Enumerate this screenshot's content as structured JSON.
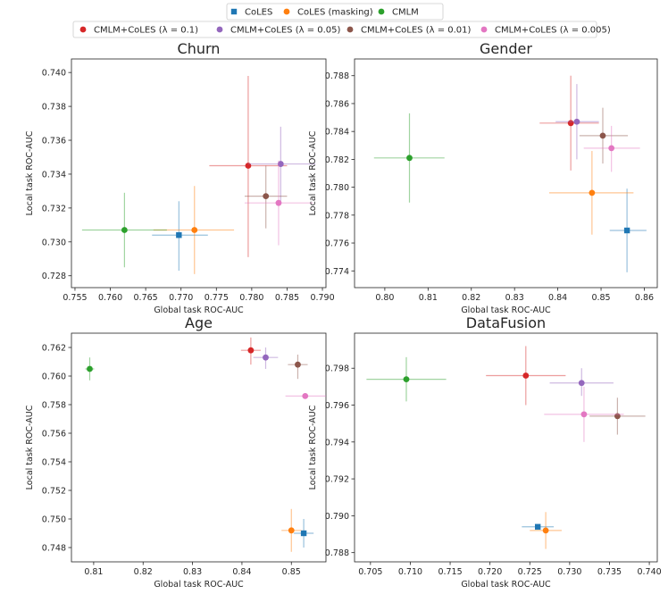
{
  "chart_data": {
    "type": "scatter",
    "legend": {
      "placement": "top-center",
      "entries": [
        {
          "name": "CoLES",
          "color": "#1f77b4",
          "marker": "square"
        },
        {
          "name": "CoLES (masking)",
          "color": "#ff7f0e",
          "marker": "circle"
        },
        {
          "name": "CMLM",
          "color": "#2ca02c",
          "marker": "circle"
        },
        {
          "name": "CMLM+CoLES (λ = 0.1)",
          "color": "#d62728",
          "marker": "circle"
        },
        {
          "name": "CMLM+CoLES (λ = 0.05)",
          "color": "#9467bd",
          "marker": "circle"
        },
        {
          "name": "CMLM+CoLES (λ = 0.01)",
          "color": "#8c564b",
          "marker": "circle"
        },
        {
          "name": "CMLM+CoLES (λ = 0.005)",
          "color": "#e377c2",
          "marker": "circle"
        }
      ]
    },
    "panels": [
      {
        "title": "Churn",
        "xlabel": "Global task ROC-AUC",
        "ylabel": "Local task ROC-AUC",
        "xlim": [
          0.7545,
          0.7905
        ],
        "ylim": [
          0.7273,
          0.7408
        ],
        "xticks": [
          0.755,
          0.76,
          0.765,
          0.77,
          0.775,
          0.78,
          0.785,
          0.79
        ],
        "xtick_labels": [
          "0.755",
          "0.760",
          "0.765",
          "0.770",
          "0.775",
          "0.780",
          "0.785",
          "0.790"
        ],
        "yticks": [
          0.728,
          0.73,
          0.732,
          0.734,
          0.736,
          0.738,
          0.74
        ],
        "ytick_labels": [
          "0.728",
          "0.730",
          "0.732",
          "0.734",
          "0.736",
          "0.738",
          "0.740"
        ],
        "points": [
          {
            "series": "CoLES",
            "x": 0.7697,
            "y": 0.7304,
            "xerr": [
              0.7659,
              0.7738
            ],
            "yerr": [
              0.7283,
              0.7324
            ]
          },
          {
            "series": "CoLES (masking)",
            "x": 0.7719,
            "y": 0.7307,
            "xerr": [
              0.7661,
              0.7775
            ],
            "yerr": [
              0.7281,
              0.7333
            ]
          },
          {
            "series": "CMLM",
            "x": 0.762,
            "y": 0.7307,
            "xerr": [
              0.756,
              0.768
            ],
            "yerr": [
              0.7285,
              0.7329
            ]
          },
          {
            "series": "CMLM+CoLES (λ = 0.1)",
            "x": 0.7795,
            "y": 0.7345,
            "xerr": [
              0.774,
              0.785
            ],
            "yerr": [
              0.7291,
              0.7398
            ]
          },
          {
            "series": "CMLM+CoLES (λ = 0.05)",
            "x": 0.7841,
            "y": 0.7346,
            "xerr": [
              0.7795,
              0.789
            ],
            "yerr": [
              0.7323,
              0.7368
            ]
          },
          {
            "series": "CMLM+CoLES (λ = 0.01)",
            "x": 0.782,
            "y": 0.7327,
            "xerr": [
              0.779,
              0.785
            ],
            "yerr": [
              0.7308,
              0.7345
            ]
          },
          {
            "series": "CMLM+CoLES (λ = 0.005)",
            "x": 0.7838,
            "y": 0.7323,
            "xerr": [
              0.779,
              0.7887
            ],
            "yerr": [
              0.7298,
              0.7348
            ]
          }
        ]
      },
      {
        "title": "Gender",
        "xlabel": "Global task ROC-AUC",
        "ylabel": "Local task ROC-AUC",
        "xlim": [
          0.793,
          0.863
        ],
        "ylim": [
          0.7728,
          0.7892
        ],
        "xticks": [
          0.8,
          0.81,
          0.82,
          0.83,
          0.84,
          0.85,
          0.86
        ],
        "xtick_labels": [
          "0.80",
          "0.81",
          "0.82",
          "0.83",
          "0.84",
          "0.85",
          "0.86"
        ],
        "yticks": [
          0.774,
          0.776,
          0.778,
          0.78,
          0.782,
          0.784,
          0.786,
          0.788
        ],
        "ytick_labels": [
          "0.774",
          "0.776",
          "0.778",
          "0.780",
          "0.782",
          "0.784",
          "0.786",
          "0.788"
        ],
        "points": [
          {
            "series": "CoLES",
            "x": 0.856,
            "y": 0.7769,
            "xerr": [
              0.852,
              0.8605
            ],
            "yerr": [
              0.7739,
              0.7799
            ]
          },
          {
            "series": "CoLES (masking)",
            "x": 0.8479,
            "y": 0.7796,
            "xerr": [
              0.838,
              0.8575
            ],
            "yerr": [
              0.7766,
              0.7826
            ]
          },
          {
            "series": "CMLM",
            "x": 0.8057,
            "y": 0.7821,
            "xerr": [
              0.7975,
              0.8138
            ],
            "yerr": [
              0.7789,
              0.7853
            ]
          },
          {
            "series": "CMLM+CoLES (λ = 0.1)",
            "x": 0.843,
            "y": 0.7846,
            "xerr": [
              0.8358,
              0.8495
            ],
            "yerr": [
              0.7812,
              0.788
            ]
          },
          {
            "series": "CMLM+CoLES (λ = 0.05)",
            "x": 0.8444,
            "y": 0.7847,
            "xerr": [
              0.8395,
              0.8495
            ],
            "yerr": [
              0.782,
              0.7874
            ]
          },
          {
            "series": "CMLM+CoLES (λ = 0.01)",
            "x": 0.8504,
            "y": 0.7837,
            "xerr": [
              0.845,
              0.8562
            ],
            "yerr": [
              0.7817,
              0.7857
            ]
          },
          {
            "series": "CMLM+CoLES (λ = 0.005)",
            "x": 0.8524,
            "y": 0.7828,
            "xerr": [
              0.846,
              0.859
            ],
            "yerr": [
              0.7811,
              0.7844
            ]
          }
        ]
      },
      {
        "title": "Age",
        "xlabel": "Global task ROC-AUC",
        "ylabel": "Local task ROC-AUC",
        "xlim": [
          0.8055,
          0.857
        ],
        "ylim": [
          0.747,
          0.763
        ],
        "xticks": [
          0.81,
          0.82,
          0.83,
          0.84,
          0.85
        ],
        "xtick_labels": [
          "0.81",
          "0.82",
          "0.83",
          "0.84",
          "0.85"
        ],
        "yticks": [
          0.748,
          0.75,
          0.752,
          0.754,
          0.756,
          0.758,
          0.76,
          0.762
        ],
        "ytick_labels": [
          "0.748",
          "0.750",
          "0.752",
          "0.754",
          "0.756",
          "0.758",
          "0.760",
          "0.762"
        ],
        "points": [
          {
            "series": "CoLES",
            "x": 0.8525,
            "y": 0.749,
            "xerr": [
              0.8505,
              0.8545
            ],
            "yerr": [
              0.748,
              0.75
            ]
          },
          {
            "series": "CoLES (masking)",
            "x": 0.85,
            "y": 0.7492,
            "xerr": [
              0.848,
              0.852
            ],
            "yerr": [
              0.7477,
              0.7507
            ]
          },
          {
            "series": "CMLM",
            "x": 0.8092,
            "y": 0.7605,
            "xerr": [
              0.8083,
              0.8101
            ],
            "yerr": [
              0.7597,
              0.7613
            ]
          },
          {
            "series": "CMLM+CoLES (λ = 0.1)",
            "x": 0.8418,
            "y": 0.7618,
            "xerr": [
              0.8398,
              0.8438
            ],
            "yerr": [
              0.7608,
              0.7627
            ]
          },
          {
            "series": "CMLM+CoLES (λ = 0.05)",
            "x": 0.8448,
            "y": 0.7613,
            "xerr": [
              0.8423,
              0.8473
            ],
            "yerr": [
              0.7605,
              0.762
            ]
          },
          {
            "series": "CMLM+CoLES (λ = 0.01)",
            "x": 0.8513,
            "y": 0.7608,
            "xerr": [
              0.8493,
              0.8533
            ],
            "yerr": [
              0.7598,
              0.7615
            ]
          },
          {
            "series": "CMLM+CoLES (λ = 0.005)",
            "x": 0.8528,
            "y": 0.7586,
            "xerr": [
              0.8488,
              0.857
            ],
            "yerr": [
              0.7586,
              0.7586
            ]
          }
        ]
      },
      {
        "title": "DataFusion",
        "xlabel": "Global task ROC-AUC",
        "ylabel": "Local task ROC-AUC",
        "xlim": [
          0.703,
          0.741
        ],
        "ylim": [
          0.7875,
          0.7999
        ],
        "xticks": [
          0.705,
          0.71,
          0.715,
          0.72,
          0.725,
          0.73,
          0.735,
          0.74
        ],
        "xtick_labels": [
          "0.705",
          "0.710",
          "0.715",
          "0.720",
          "0.725",
          "0.730",
          "0.735",
          "0.740"
        ],
        "yticks": [
          0.788,
          0.79,
          0.792,
          0.794,
          0.796,
          0.798
        ],
        "ytick_labels": [
          "0.788",
          "0.790",
          "0.792",
          "0.794",
          "0.796",
          "0.798"
        ],
        "points": [
          {
            "series": "CoLES",
            "x": 0.726,
            "y": 0.7894,
            "xerr": [
              0.724,
              0.728
            ],
            "yerr": [
              0.7894,
              0.7894
            ]
          },
          {
            "series": "CoLES (masking)",
            "x": 0.727,
            "y": 0.7892,
            "xerr": [
              0.725,
              0.729
            ],
            "yerr": [
              0.7882,
              0.7902
            ]
          },
          {
            "series": "CMLM",
            "x": 0.7095,
            "y": 0.7974,
            "xerr": [
              0.7045,
              0.7145
            ],
            "yerr": [
              0.7962,
              0.7986
            ]
          },
          {
            "series": "CMLM+CoLES (λ = 0.1)",
            "x": 0.7245,
            "y": 0.7976,
            "xerr": [
              0.7195,
              0.7295
            ],
            "yerr": [
              0.796,
              0.7992
            ]
          },
          {
            "series": "CMLM+CoLES (λ = 0.05)",
            "x": 0.7315,
            "y": 0.7972,
            "xerr": [
              0.7275,
              0.7355
            ],
            "yerr": [
              0.7965,
              0.798
            ]
          },
          {
            "series": "CMLM+CoLES (λ = 0.01)",
            "x": 0.736,
            "y": 0.7954,
            "xerr": [
              0.7325,
              0.7395
            ],
            "yerr": [
              0.7944,
              0.7964
            ]
          },
          {
            "series": "CMLM+CoLES (λ = 0.005)",
            "x": 0.7318,
            "y": 0.7955,
            "xerr": [
              0.7268,
              0.7368
            ],
            "yerr": [
              0.794,
              0.797
            ]
          }
        ]
      }
    ]
  }
}
